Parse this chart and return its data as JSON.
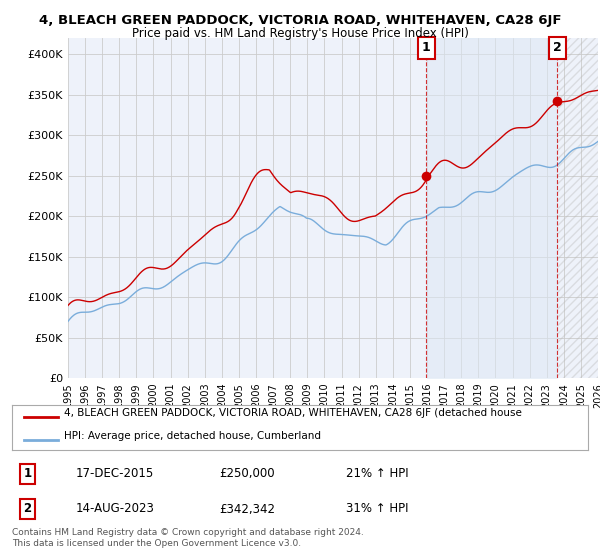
{
  "title": "4, BLEACH GREEN PADDOCK, VICTORIA ROAD, WHITEHAVEN, CA28 6JF",
  "subtitle": "Price paid vs. HM Land Registry's House Price Index (HPI)",
  "legend_line1": "4, BLEACH GREEN PADDOCK, VICTORIA ROAD, WHITEHAVEN, CA28 6JF (detached house",
  "legend_line2": "HPI: Average price, detached house, Cumberland",
  "annotation1_date": "17-DEC-2015",
  "annotation1_price": "£250,000",
  "annotation1_hpi": "21% ↑ HPI",
  "annotation2_date": "14-AUG-2023",
  "annotation2_price": "£342,342",
  "annotation2_hpi": "31% ↑ HPI",
  "copyright": "Contains HM Land Registry data © Crown copyright and database right 2024.\nThis data is licensed under the Open Government Licence v3.0.",
  "red_color": "#cc0000",
  "blue_color": "#7aaddb",
  "bg_color": "#eef2fa",
  "grid_color": "#cccccc",
  "ylim": [
    0,
    420000
  ],
  "yticks": [
    0,
    50000,
    100000,
    150000,
    200000,
    250000,
    300000,
    350000,
    400000
  ],
  "ytick_labels": [
    "£0",
    "£50K",
    "£100K",
    "£150K",
    "£200K",
    "£250K",
    "£300K",
    "£350K",
    "£400K"
  ],
  "x_start_year": 1995,
  "x_end_year": 2026,
  "year1": 2015.96,
  "price1": 250000,
  "year2": 2023.62,
  "price2": 342342
}
